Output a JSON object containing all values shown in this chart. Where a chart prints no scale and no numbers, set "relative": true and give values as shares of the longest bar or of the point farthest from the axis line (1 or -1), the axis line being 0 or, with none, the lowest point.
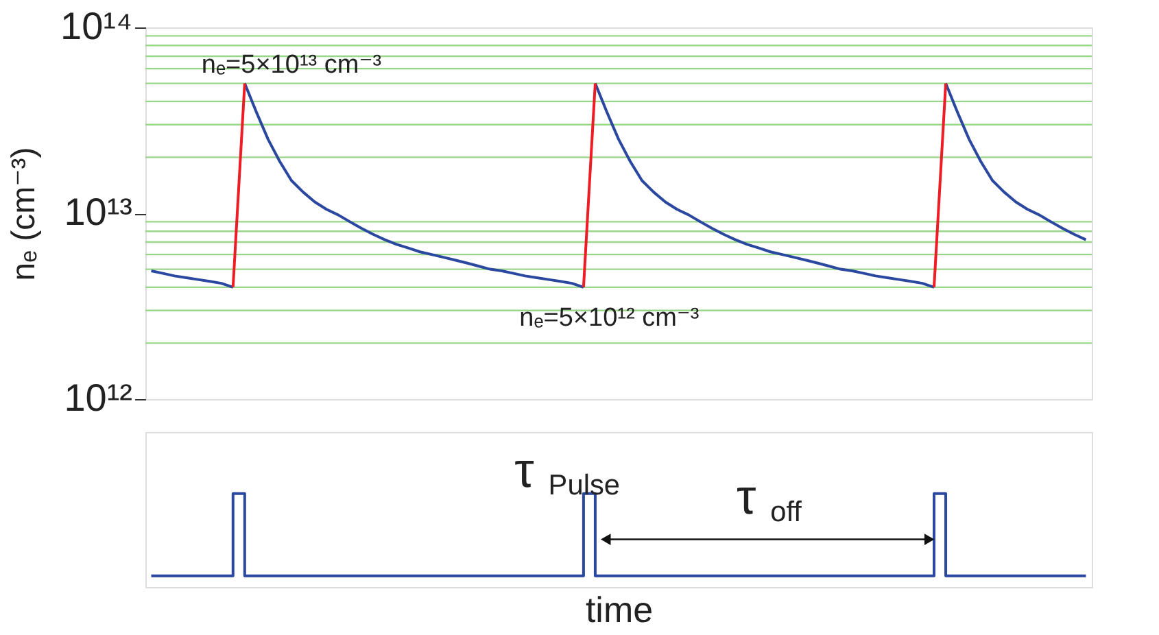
{
  "chart_data": [
    {
      "type": "line",
      "ylabel": "nₑ (cm⁻³)",
      "log": "y",
      "tick_labels": "y",
      "ylim": [
        1000000000000.0,
        100000000000000.0
      ],
      "categories": [
        null,
        null,
        null,
        null,
        null,
        null,
        null,
        null,
        null,
        null,
        null,
        null,
        null,
        null,
        null,
        null,
        null,
        null,
        null,
        null,
        null,
        null,
        null,
        null,
        null,
        null,
        null,
        null,
        null,
        null,
        null,
        null,
        null,
        null,
        null,
        null,
        null,
        null,
        null,
        null,
        null,
        null,
        null,
        null,
        null,
        null,
        null,
        null,
        null,
        null,
        null,
        null,
        null,
        null,
        null,
        null,
        null,
        null,
        null,
        null,
        null,
        null,
        null,
        null,
        null,
        null,
        null,
        null,
        null,
        null,
        null,
        null,
        null,
        null,
        null,
        null,
        null,
        null,
        null,
        null,
        null
      ],
      "yticks": [
        {
          "value": 1000000000000.0,
          "label": "10¹²"
        },
        {
          "value": 10000000000000.0,
          "label": "10¹³"
        },
        {
          "value": 100000000000000.0,
          "label": "10¹⁴"
        }
      ],
      "series": [
        {
          "color": "#2b48a0",
          "values": [
            4900000000000.0,
            4750000000000.0,
            4600000000000.0,
            4500000000000.0,
            4400000000000.0,
            4300000000000.0,
            4200000000000.0,
            4000000000000.0,
            null,
            null,
            null,
            null,
            null,
            null,
            null,
            null,
            null,
            null,
            null,
            null,
            null,
            null,
            null,
            null,
            null,
            null,
            null,
            null,
            null,
            null,
            null,
            null,
            null,
            null,
            null,
            null,
            null,
            null,
            null,
            null,
            null,
            null,
            null,
            null,
            null,
            null,
            null,
            null,
            null,
            null,
            null,
            null,
            null,
            null,
            null,
            null,
            null,
            null,
            null,
            null,
            null,
            null,
            null,
            null,
            null,
            null,
            null,
            null,
            null,
            null,
            null,
            null,
            null,
            null,
            null,
            null,
            null,
            null,
            null,
            null,
            null
          ]
        },
        {
          "color": "#2b48a0",
          "values": [
            null,
            null,
            null,
            null,
            null,
            null,
            null,
            null,
            50000000000000.0,
            35000000000000.0,
            25000000000000.0,
            19000000000000.0,
            15000000000000.0,
            13000000000000.0,
            11500000000000.0,
            10500000000000.0,
            9800000000000.0,
            9000000000000.0,
            8300000000000.0,
            7700000000000.0,
            7200000000000.0,
            6800000000000.0,
            6500000000000.0,
            6200000000000.0,
            6000000000000.0,
            5800000000000.0,
            5600000000000.0,
            5400000000000.0,
            5200000000000.0,
            5000000000000.0,
            4900000000000.0,
            4750000000000.0,
            4600000000000.0,
            4500000000000.0,
            4400000000000.0,
            4300000000000.0,
            4200000000000.0,
            4000000000000.0,
            null,
            null,
            null,
            null,
            null,
            null,
            null,
            null,
            null,
            null,
            null,
            null,
            null,
            null,
            null,
            null,
            null,
            null,
            null,
            null,
            null,
            null,
            null,
            null,
            null,
            null,
            null,
            null,
            null,
            null,
            null,
            null,
            null,
            null,
            null,
            null,
            null,
            null,
            null,
            null,
            null,
            null,
            null
          ]
        },
        {
          "color": "#2b48a0",
          "values": [
            null,
            null,
            null,
            null,
            null,
            null,
            null,
            null,
            null,
            null,
            null,
            null,
            null,
            null,
            null,
            null,
            null,
            null,
            null,
            null,
            null,
            null,
            null,
            null,
            null,
            null,
            null,
            null,
            null,
            null,
            null,
            null,
            null,
            null,
            null,
            null,
            null,
            null,
            50000000000000.0,
            35000000000000.0,
            25000000000000.0,
            19000000000000.0,
            15000000000000.0,
            13000000000000.0,
            11500000000000.0,
            10500000000000.0,
            9800000000000.0,
            9000000000000.0,
            8300000000000.0,
            7700000000000.0,
            7200000000000.0,
            6800000000000.0,
            6500000000000.0,
            6200000000000.0,
            6000000000000.0,
            5800000000000.0,
            5600000000000.0,
            5400000000000.0,
            5200000000000.0,
            5000000000000.0,
            4900000000000.0,
            4750000000000.0,
            4600000000000.0,
            4500000000000.0,
            4400000000000.0,
            4300000000000.0,
            4200000000000.0,
            4000000000000.0,
            null,
            null,
            null,
            null,
            null,
            null,
            null,
            null,
            null,
            null,
            null,
            null,
            null
          ]
        },
        {
          "color": "#2b48a0",
          "values": [
            null,
            null,
            null,
            null,
            null,
            null,
            null,
            null,
            null,
            null,
            null,
            null,
            null,
            null,
            null,
            null,
            null,
            null,
            null,
            null,
            null,
            null,
            null,
            null,
            null,
            null,
            null,
            null,
            null,
            null,
            null,
            null,
            null,
            null,
            null,
            null,
            null,
            null,
            null,
            null,
            null,
            null,
            null,
            null,
            null,
            null,
            null,
            null,
            null,
            null,
            null,
            null,
            null,
            null,
            null,
            null,
            null,
            null,
            null,
            null,
            null,
            null,
            null,
            null,
            null,
            null,
            null,
            null,
            50000000000000.0,
            35000000000000.0,
            25000000000000.0,
            19000000000000.0,
            15000000000000.0,
            13000000000000.0,
            11500000000000.0,
            10500000000000.0,
            9800000000000.0,
            9000000000000.0,
            8300000000000.0,
            7700000000000.0,
            7200000000000.0
          ]
        },
        {
          "color": "#ee1c24",
          "values": [
            null,
            null,
            null,
            null,
            null,
            null,
            null,
            4000000000000.0,
            50000000000000.0,
            null,
            null,
            null,
            null,
            null,
            null,
            null,
            null,
            null,
            null,
            null,
            null,
            null,
            null,
            null,
            null,
            null,
            null,
            null,
            null,
            null,
            null,
            null,
            null,
            null,
            null,
            null,
            null,
            4000000000000.0,
            50000000000000.0,
            null,
            null,
            null,
            null,
            null,
            null,
            null,
            null,
            null,
            null,
            null,
            null,
            null,
            null,
            null,
            null,
            null,
            null,
            null,
            null,
            null,
            null,
            null,
            null,
            null,
            null,
            null,
            null,
            4000000000000.0,
            50000000000000.0,
            null,
            null,
            null,
            null,
            null,
            null,
            null,
            null,
            null,
            null,
            null,
            null
          ]
        }
      ],
      "ref_lines": [
        {
          "axis": "y",
          "value": 2000000000000.0,
          "color": "#9ad68a"
        },
        {
          "axis": "y",
          "value": 3000000000000.0,
          "color": "#9ad68a"
        },
        {
          "axis": "y",
          "value": 4000000000000.0,
          "color": "#9ad68a"
        },
        {
          "axis": "y",
          "value": 5000000000000.0,
          "color": "#9ad68a"
        },
        {
          "axis": "y",
          "value": 6000000000000.0,
          "color": "#9ad68a"
        },
        {
          "axis": "y",
          "value": 7000000000000.0,
          "color": "#9ad68a"
        },
        {
          "axis": "y",
          "value": 8000000000000.0,
          "color": "#9ad68a"
        },
        {
          "axis": "y",
          "value": 9000000000000.0,
          "color": "#9ad68a"
        },
        {
          "axis": "y",
          "value": 20000000000000.0,
          "color": "#9ad68a"
        },
        {
          "axis": "y",
          "value": 30000000000000.0,
          "color": "#9ad68a"
        },
        {
          "axis": "y",
          "value": 40000000000000.0,
          "color": "#9ad68a"
        },
        {
          "axis": "y",
          "value": 50000000000000.0,
          "color": "#9ad68a"
        },
        {
          "axis": "y",
          "value": 60000000000000.0,
          "color": "#9ad68a"
        },
        {
          "axis": "y",
          "value": 70000000000000.0,
          "color": "#9ad68a"
        },
        {
          "axis": "y",
          "value": 80000000000000.0,
          "color": "#9ad68a"
        },
        {
          "axis": "y",
          "value": 90000000000000.0,
          "color": "#9ad68a"
        }
      ],
      "annotations": [
        {
          "text": "nₑ=5×10¹³ cm⁻³",
          "y": 50000000000000.0
        },
        {
          "text": "nₑ=5×10¹² cm⁻³",
          "y": 4000000000000.0
        }
      ]
    },
    {
      "type": "step",
      "relative": true,
      "xlabel": "time",
      "tick_labels": false,
      "categories": [
        null,
        null,
        null,
        null,
        null,
        null,
        null,
        null,
        null,
        null,
        null,
        null,
        null,
        null,
        null,
        null,
        null,
        null,
        null,
        null,
        null,
        null,
        null,
        null,
        null,
        null,
        null,
        null,
        null,
        null,
        null,
        null,
        null,
        null,
        null,
        null,
        null,
        null,
        null,
        null,
        null,
        null,
        null,
        null,
        null,
        null,
        null,
        null,
        null,
        null,
        null,
        null,
        null,
        null,
        null,
        null,
        null,
        null,
        null,
        null,
        null,
        null,
        null,
        null,
        null,
        null,
        null,
        null,
        null,
        null,
        null,
        null,
        null,
        null,
        null,
        null,
        null,
        null,
        null,
        null,
        null
      ],
      "series": [
        {
          "color": "#2b48a0",
          "values": [
            0.12,
            0.12,
            0.12,
            0.12,
            0.12,
            0.12,
            0.12,
            1,
            0.12,
            0.12,
            0.12,
            0.12,
            0.12,
            0.12,
            0.12,
            0.12,
            0.12,
            0.12,
            0.12,
            0.12,
            0.12,
            0.12,
            0.12,
            0.12,
            0.12,
            0.12,
            0.12,
            0.12,
            0.12,
            0.12,
            0.12,
            0.12,
            0.12,
            0.12,
            0.12,
            0.12,
            0.12,
            1,
            0.12,
            0.12,
            0.12,
            0.12,
            0.12,
            0.12,
            0.12,
            0.12,
            0.12,
            0.12,
            0.12,
            0.12,
            0.12,
            0.12,
            0.12,
            0.12,
            0.12,
            0.12,
            0.12,
            0.12,
            0.12,
            0.12,
            0.12,
            0.12,
            0.12,
            0.12,
            0.12,
            0.12,
            0.12,
            1,
            0.12,
            0.12,
            0.12,
            0.12,
            0.12,
            0.12,
            0.12,
            0.12,
            0.12,
            0.12,
            0.12,
            0.12,
            0.12
          ]
        }
      ],
      "annotations": [
        "τ$_{Pulse}$",
        "τ$_{off}$"
      ]
    }
  ]
}
